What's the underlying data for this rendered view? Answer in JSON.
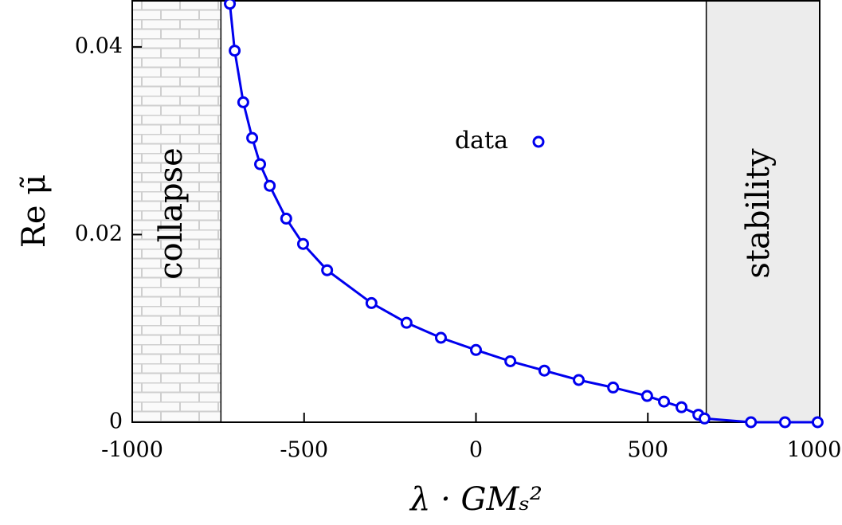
{
  "chart_data": {
    "type": "line",
    "xlabel": "λ · GMₛ²",
    "ylabel": "Re μ̃",
    "series": [
      {
        "name": "data",
        "color": "#0000ee",
        "x": [
          -716,
          -702,
          -677,
          -651,
          -628,
          -600,
          -552,
          -503,
          -433,
          -304,
          -202,
          -102,
          0,
          100,
          199,
          299,
          399,
          498,
          547,
          598,
          647,
          665,
          800,
          899,
          994
        ],
        "values": [
          0.0446,
          0.0396,
          0.0341,
          0.0303,
          0.0275,
          0.0252,
          0.0217,
          0.019,
          0.0162,
          0.0127,
          0.0106,
          0.009,
          0.0077,
          0.0065,
          0.0055,
          0.0045,
          0.0037,
          0.0028,
          0.0022,
          0.0016,
          0.0008,
          0.0004,
          0,
          0,
          0
        ]
      }
    ],
    "xlim": [
      -1000,
      1000
    ],
    "xticks": [
      -1000,
      -500,
      0,
      500,
      1000
    ],
    "ylim": [
      0,
      0.045
    ],
    "yticks": [
      0,
      0.02,
      0.04
    ],
    "regions": [
      {
        "label": "collapse",
        "x_end": -742
      },
      {
        "label": "stability",
        "x_start": 670
      }
    ],
    "legend": "upper center"
  }
}
